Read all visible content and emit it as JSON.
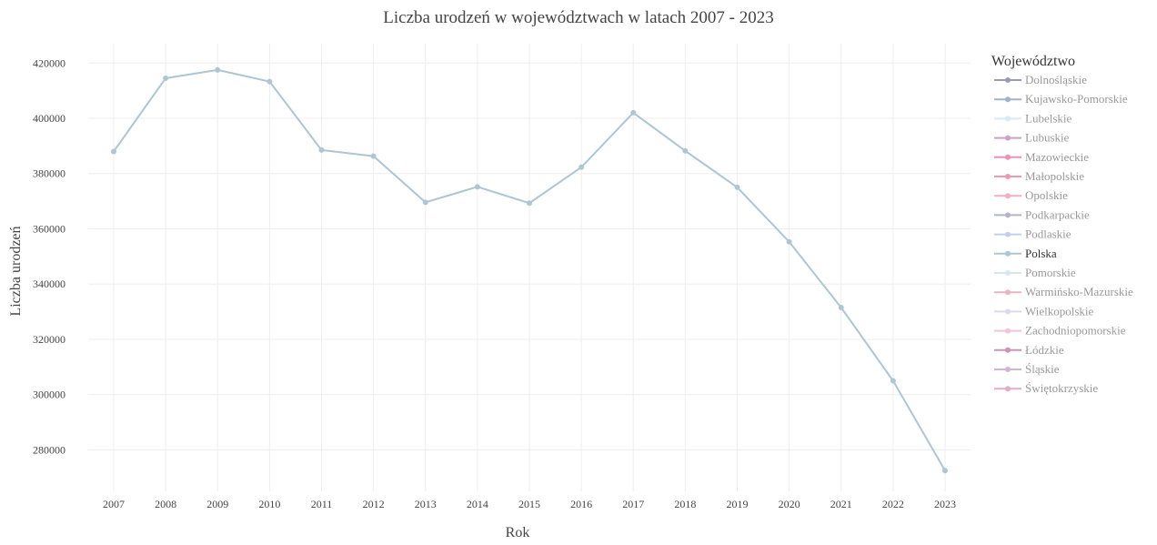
{
  "chart_data": {
    "type": "line",
    "title": "Liczba urodzeń w województwach w latach 2007 - 2023",
    "xlabel": "Rok",
    "ylabel": "Liczba urodzeń",
    "x": [
      2007,
      2008,
      2009,
      2010,
      2011,
      2012,
      2013,
      2014,
      2015,
      2016,
      2017,
      2018,
      2019,
      2020,
      2021,
      2022,
      2023
    ],
    "ylim": [
      265000,
      427000
    ],
    "yticks": [
      280000,
      300000,
      320000,
      340000,
      360000,
      380000,
      400000,
      420000
    ],
    "ytick_labels": [
      "280000",
      "300000",
      "320000",
      "340000",
      "360000",
      "380000",
      "400000",
      "420000"
    ],
    "grid": true,
    "legend_title": "Województwo",
    "legend_position": "right",
    "series": [
      {
        "name": "Polska",
        "color": "#adc6d1",
        "values": [
          388000,
          414500,
          417500,
          413300,
          388500,
          386300,
          369600,
          375200,
          369300,
          382300,
          402000,
          388200,
          375000,
          355300,
          331500,
          305000,
          272500
        ]
      }
    ],
    "legend": [
      {
        "label": "Dolnośląskie",
        "color": "#9a9ab8",
        "active": false
      },
      {
        "label": "Kujawsko-Pomorskie",
        "color": "#a3b1d1",
        "active": false
      },
      {
        "label": "Lubelskie",
        "color": "#d4eaf6",
        "active": false
      },
      {
        "label": "Lubuskie",
        "color": "#c9a3cc",
        "active": false
      },
      {
        "label": "Mazowieckie",
        "color": "#ee8fb7",
        "active": false
      },
      {
        "label": "Małopolskie",
        "color": "#ee9aae",
        "active": false
      },
      {
        "label": "Opolskie",
        "color": "#f2aec6",
        "active": false
      },
      {
        "label": "Podkarpackie",
        "color": "#b3b3c9",
        "active": false
      },
      {
        "label": "Podlaskie",
        "color": "#c4cfe9",
        "active": false
      },
      {
        "label": "Polska",
        "color": "#adc6d1",
        "active": true
      },
      {
        "label": "Pomorskie",
        "color": "#d6e6f7",
        "active": false
      },
      {
        "label": "Warmińsko-Mazurskie",
        "color": "#e7b5c3",
        "active": false
      },
      {
        "label": "Wielkopolskie",
        "color": "#ddd9ea",
        "active": false
      },
      {
        "label": "Zachodniopomorskie",
        "color": "#f4c4d8",
        "active": false
      },
      {
        "label": "Łódzkie",
        "color": "#c796b7",
        "active": false
      },
      {
        "label": "Śląskie",
        "color": "#d6b1d8",
        "active": false
      },
      {
        "label": "Świętokrzyskie",
        "color": "#e3acc9",
        "active": false
      }
    ]
  }
}
